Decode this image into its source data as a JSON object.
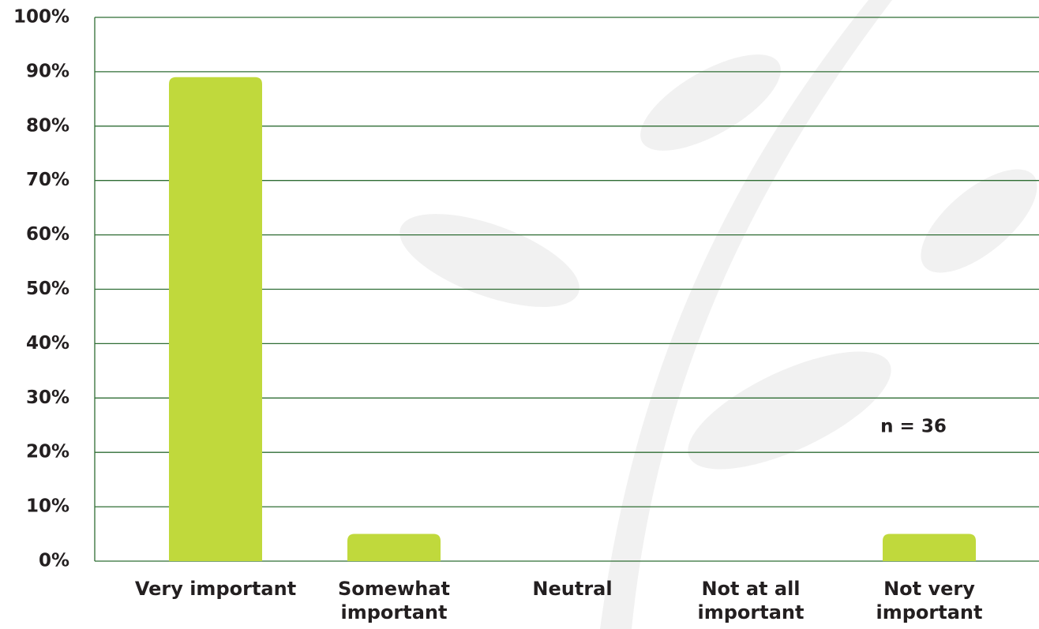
{
  "chart_data": {
    "type": "bar",
    "categories": [
      "Very important",
      "Somewhat important",
      "Neutral",
      "Not at all important",
      "Not very important"
    ],
    "values": [
      89,
      5,
      0,
      0,
      5
    ],
    "color": "#c0d93c",
    "ylim": [
      0,
      100
    ],
    "yticks": [
      {
        "value": 0,
        "label": "0%"
      },
      {
        "value": 10,
        "label": "10%"
      },
      {
        "value": 20,
        "label": "20%"
      },
      {
        "value": 30,
        "label": "30%"
      },
      {
        "value": 40,
        "label": "40%"
      },
      {
        "value": 50,
        "label": "50%"
      },
      {
        "value": 60,
        "label": "60%"
      },
      {
        "value": 70,
        "label": "70%"
      },
      {
        "value": 80,
        "label": "80%"
      },
      {
        "value": 90,
        "label": "90%"
      },
      {
        "value": 100,
        "label": "100%"
      }
    ],
    "grid": true,
    "annotation": "n = 36"
  }
}
